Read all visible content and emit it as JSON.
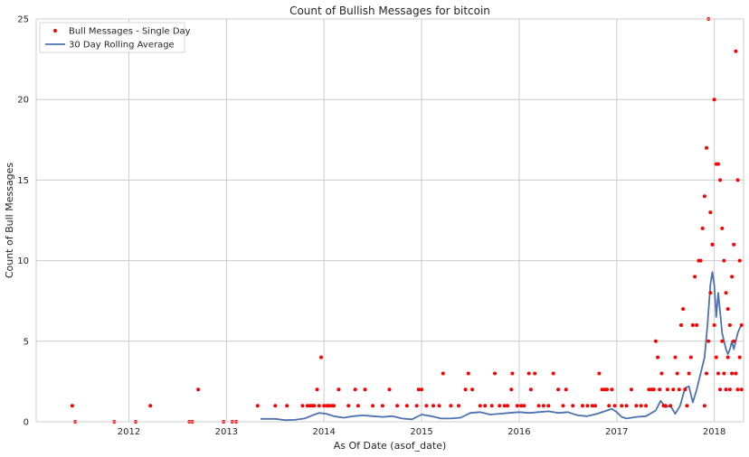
{
  "chart_data": {
    "type": "scatter",
    "title": "Count of Bullish Messages for bitcoin",
    "xlabel": "As Of Date (asof_date)",
    "ylabel": "Count of Bull Messages",
    "xlim": [
      2011.05,
      2018.3
    ],
    "ylim": [
      0,
      25
    ],
    "xticks": [
      2012,
      2013,
      2014,
      2015,
      2016,
      2017,
      2018
    ],
    "xtick_labels": [
      "2012",
      "2013",
      "2014",
      "2015",
      "2016",
      "2017",
      "2018"
    ],
    "yticks": [
      0,
      5,
      10,
      15,
      20,
      25
    ],
    "ytick_labels": [
      "0",
      "5",
      "10",
      "15",
      "20",
      "25"
    ],
    "grid": true,
    "legend_position": "top-left",
    "colors": {
      "scatter": "#ff0000",
      "line": "#4c72b0",
      "grid": "#cccccc",
      "frame": "#cccccc"
    },
    "series": [
      {
        "name": "Bull Messages - Single Day",
        "kind": "scatter",
        "points": [
          [
            2011.42,
            1
          ],
          [
            2011.45,
            0
          ],
          [
            2011.85,
            0
          ],
          [
            2012.07,
            0
          ],
          [
            2012.22,
            1
          ],
          [
            2012.62,
            0
          ],
          [
            2012.65,
            0
          ],
          [
            2012.71,
            2
          ],
          [
            2012.97,
            0
          ],
          [
            2013.06,
            0
          ],
          [
            2013.1,
            0
          ],
          [
            2013.32,
            1
          ],
          [
            2013.5,
            1
          ],
          [
            2013.62,
            1
          ],
          [
            2013.78,
            1
          ],
          [
            2013.83,
            1
          ],
          [
            2013.86,
            1
          ],
          [
            2013.88,
            1
          ],
          [
            2013.9,
            1
          ],
          [
            2013.93,
            2
          ],
          [
            2013.95,
            1
          ],
          [
            2013.97,
            4
          ],
          [
            2014.0,
            1
          ],
          [
            2014.03,
            1
          ],
          [
            2014.05,
            1
          ],
          [
            2014.08,
            1
          ],
          [
            2014.1,
            1
          ],
          [
            2014.15,
            2
          ],
          [
            2014.25,
            1
          ],
          [
            2014.32,
            2
          ],
          [
            2014.35,
            1
          ],
          [
            2014.42,
            2
          ],
          [
            2014.5,
            1
          ],
          [
            2014.6,
            1
          ],
          [
            2014.67,
            2
          ],
          [
            2014.75,
            1
          ],
          [
            2014.85,
            1
          ],
          [
            2014.95,
            1
          ],
          [
            2014.97,
            2
          ],
          [
            2015.0,
            2
          ],
          [
            2015.05,
            1
          ],
          [
            2015.12,
            1
          ],
          [
            2015.18,
            1
          ],
          [
            2015.22,
            3
          ],
          [
            2015.3,
            1
          ],
          [
            2015.38,
            1
          ],
          [
            2015.45,
            2
          ],
          [
            2015.48,
            3
          ],
          [
            2015.52,
            2
          ],
          [
            2015.6,
            1
          ],
          [
            2015.65,
            1
          ],
          [
            2015.72,
            1
          ],
          [
            2015.75,
            3
          ],
          [
            2015.8,
            1
          ],
          [
            2015.85,
            1
          ],
          [
            2015.88,
            1
          ],
          [
            2015.92,
            2
          ],
          [
            2015.93,
            3
          ],
          [
            2015.98,
            1
          ],
          [
            2016.02,
            1
          ],
          [
            2016.05,
            1
          ],
          [
            2016.1,
            3
          ],
          [
            2016.12,
            2
          ],
          [
            2016.16,
            3
          ],
          [
            2016.2,
            1
          ],
          [
            2016.25,
            1
          ],
          [
            2016.3,
            1
          ],
          [
            2016.35,
            3
          ],
          [
            2016.4,
            2
          ],
          [
            2016.45,
            1
          ],
          [
            2016.48,
            2
          ],
          [
            2016.55,
            1
          ],
          [
            2016.65,
            1
          ],
          [
            2016.7,
            1
          ],
          [
            2016.75,
            1
          ],
          [
            2016.78,
            1
          ],
          [
            2016.82,
            3
          ],
          [
            2016.85,
            2
          ],
          [
            2016.88,
            2
          ],
          [
            2016.9,
            2
          ],
          [
            2016.92,
            1
          ],
          [
            2016.95,
            2
          ],
          [
            2016.98,
            1
          ],
          [
            2017.05,
            1
          ],
          [
            2017.1,
            1
          ],
          [
            2017.15,
            2
          ],
          [
            2017.2,
            1
          ],
          [
            2017.25,
            1
          ],
          [
            2017.3,
            1
          ],
          [
            2017.33,
            2
          ],
          [
            2017.36,
            2
          ],
          [
            2017.38,
            2
          ],
          [
            2017.4,
            5
          ],
          [
            2017.42,
            4
          ],
          [
            2017.44,
            2
          ],
          [
            2017.46,
            3
          ],
          [
            2017.48,
            1
          ],
          [
            2017.5,
            1
          ],
          [
            2017.52,
            2
          ],
          [
            2017.55,
            1
          ],
          [
            2017.58,
            2
          ],
          [
            2017.6,
            4
          ],
          [
            2017.62,
            3
          ],
          [
            2017.64,
            2
          ],
          [
            2017.66,
            6
          ],
          [
            2017.68,
            7
          ],
          [
            2017.7,
            2
          ],
          [
            2017.72,
            1
          ],
          [
            2017.74,
            3
          ],
          [
            2017.76,
            4
          ],
          [
            2017.78,
            6
          ],
          [
            2017.8,
            9
          ],
          [
            2017.82,
            6
          ],
          [
            2017.84,
            10
          ],
          [
            2017.86,
            10
          ],
          [
            2017.88,
            12
          ],
          [
            2017.9,
            14
          ],
          [
            2017.92,
            17
          ],
          [
            2017.94,
            25
          ],
          [
            2017.96,
            13
          ],
          [
            2017.98,
            11
          ],
          [
            2018.0,
            20
          ],
          [
            2018.02,
            16
          ],
          [
            2018.04,
            16
          ],
          [
            2018.06,
            15
          ],
          [
            2018.08,
            12
          ],
          [
            2018.1,
            10
          ],
          [
            2018.12,
            8
          ],
          [
            2018.14,
            7
          ],
          [
            2018.16,
            6
          ],
          [
            2018.18,
            9
          ],
          [
            2018.2,
            11
          ],
          [
            2018.22,
            23
          ],
          [
            2018.24,
            15
          ],
          [
            2018.26,
            10
          ],
          [
            2018.28,
            6
          ],
          [
            2017.9,
            1
          ],
          [
            2017.92,
            3
          ],
          [
            2017.94,
            5
          ],
          [
            2017.96,
            8
          ],
          [
            2017.98,
            11
          ],
          [
            2018.0,
            6
          ],
          [
            2018.02,
            4
          ],
          [
            2018.04,
            3
          ],
          [
            2018.06,
            2
          ],
          [
            2018.08,
            5
          ],
          [
            2018.1,
            3
          ],
          [
            2018.12,
            2
          ],
          [
            2018.14,
            4
          ],
          [
            2018.16,
            2
          ],
          [
            2018.18,
            3
          ],
          [
            2018.2,
            5
          ],
          [
            2018.22,
            3
          ],
          [
            2018.24,
            2
          ],
          [
            2018.26,
            4
          ],
          [
            2018.28,
            2
          ]
        ]
      },
      {
        "name": "30 Day Rolling Average",
        "kind": "line",
        "points": [
          [
            2013.35,
            0.18
          ],
          [
            2013.5,
            0.18
          ],
          [
            2013.6,
            0.1
          ],
          [
            2013.7,
            0.12
          ],
          [
            2013.8,
            0.2
          ],
          [
            2013.88,
            0.4
          ],
          [
            2013.95,
            0.55
          ],
          [
            2014.02,
            0.5
          ],
          [
            2014.1,
            0.35
          ],
          [
            2014.2,
            0.25
          ],
          [
            2014.3,
            0.35
          ],
          [
            2014.4,
            0.4
          ],
          [
            2014.5,
            0.35
          ],
          [
            2014.6,
            0.3
          ],
          [
            2014.7,
            0.35
          ],
          [
            2014.8,
            0.2
          ],
          [
            2014.9,
            0.15
          ],
          [
            2015.0,
            0.45
          ],
          [
            2015.1,
            0.35
          ],
          [
            2015.2,
            0.2
          ],
          [
            2015.3,
            0.2
          ],
          [
            2015.4,
            0.25
          ],
          [
            2015.5,
            0.55
          ],
          [
            2015.6,
            0.6
          ],
          [
            2015.7,
            0.45
          ],
          [
            2015.8,
            0.5
          ],
          [
            2015.9,
            0.55
          ],
          [
            2016.0,
            0.6
          ],
          [
            2016.1,
            0.55
          ],
          [
            2016.2,
            0.6
          ],
          [
            2016.3,
            0.65
          ],
          [
            2016.4,
            0.55
          ],
          [
            2016.5,
            0.6
          ],
          [
            2016.6,
            0.4
          ],
          [
            2016.7,
            0.35
          ],
          [
            2016.8,
            0.5
          ],
          [
            2016.9,
            0.7
          ],
          [
            2016.95,
            0.8
          ],
          [
            2017.0,
            0.6
          ],
          [
            2017.05,
            0.3
          ],
          [
            2017.1,
            0.2
          ],
          [
            2017.2,
            0.3
          ],
          [
            2017.3,
            0.35
          ],
          [
            2017.4,
            0.7
          ],
          [
            2017.45,
            1.3
          ],
          [
            2017.5,
            0.9
          ],
          [
            2017.55,
            1.0
          ],
          [
            2017.6,
            0.5
          ],
          [
            2017.65,
            1.0
          ],
          [
            2017.7,
            2.1
          ],
          [
            2017.74,
            2.2
          ],
          [
            2017.78,
            1.2
          ],
          [
            2017.82,
            2.0
          ],
          [
            2017.86,
            3.0
          ],
          [
            2017.9,
            4.0
          ],
          [
            2017.93,
            6.0
          ],
          [
            2017.96,
            8.5
          ],
          [
            2017.98,
            9.3
          ],
          [
            2018.0,
            8.5
          ],
          [
            2018.02,
            6.5
          ],
          [
            2018.04,
            8.0
          ],
          [
            2018.06,
            6.8
          ],
          [
            2018.08,
            5.5
          ],
          [
            2018.1,
            5.0
          ],
          [
            2018.12,
            4.5
          ],
          [
            2018.14,
            4.2
          ],
          [
            2018.16,
            4.5
          ],
          [
            2018.18,
            5.0
          ],
          [
            2018.2,
            4.5
          ],
          [
            2018.22,
            5.0
          ],
          [
            2018.24,
            5.5
          ],
          [
            2018.26,
            5.8
          ],
          [
            2018.28,
            6.0
          ]
        ]
      }
    ]
  }
}
